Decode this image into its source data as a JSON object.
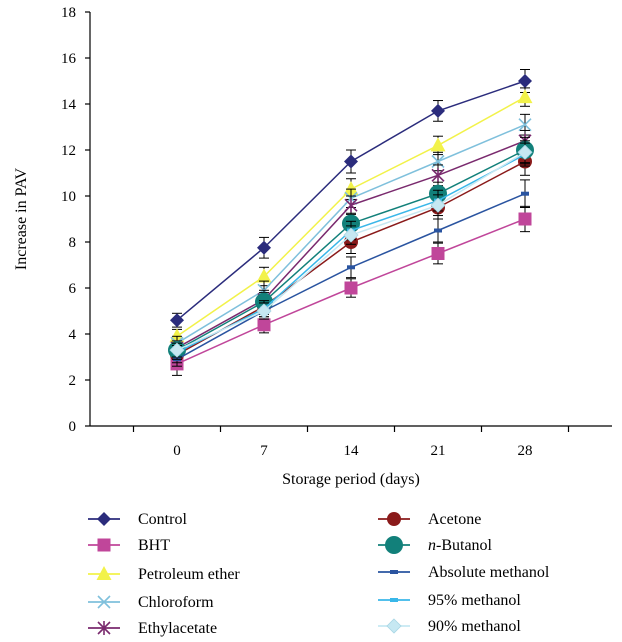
{
  "chart_data": {
    "type": "line",
    "xlabel": "Storage period (days)",
    "ylabel": "Increase in PAV",
    "x": [
      0,
      7,
      14,
      21,
      28
    ],
    "xlim": [
      -7,
      35
    ],
    "ylim": [
      0,
      18
    ],
    "yticks": [
      0,
      2,
      4,
      6,
      8,
      10,
      12,
      14,
      16,
      18
    ],
    "grid": false,
    "legend_position": "bottom",
    "series": [
      {
        "name": "Control",
        "values": [
          4.6,
          7.75,
          11.5,
          13.7,
          15.0
        ],
        "errors": [
          0.3,
          0.45,
          0.5,
          0.45,
          0.5
        ],
        "color": "#2b2c7c",
        "marker": "diamond"
      },
      {
        "name": "BHT",
        "values": [
          2.7,
          4.4,
          6.0,
          7.5,
          9.0
        ],
        "errors": [
          0.5,
          0.35,
          0.4,
          0.45,
          0.55
        ],
        "color": "#c0469a",
        "marker": "square"
      },
      {
        "name": "Petroleum ether",
        "values": [
          3.9,
          6.5,
          10.3,
          12.2,
          14.3
        ],
        "errors": [
          0.3,
          0.4,
          0.45,
          0.4,
          0.4
        ],
        "color": "#f2f24a",
        "marker": "triangle"
      },
      {
        "name": "Chloroform",
        "values": [
          3.6,
          5.9,
          9.9,
          11.5,
          13.1
        ],
        "errors": [
          0.3,
          0.4,
          0.4,
          0.4,
          0.45
        ],
        "color": "#7fc0dc",
        "marker": "x"
      },
      {
        "name": "Ethylacetate",
        "values": [
          3.4,
          5.5,
          9.6,
          10.9,
          12.4
        ],
        "errors": [
          0.3,
          0.4,
          0.4,
          0.45,
          0.45
        ],
        "color": "#7a2a6e",
        "marker": "star"
      },
      {
        "name": "Acetone",
        "values": [
          3.1,
          5.2,
          8.0,
          9.5,
          11.5
        ],
        "errors": [
          0.35,
          0.35,
          0.5,
          0.5,
          0.6
        ],
        "color": "#8a1a1a",
        "marker": "circle"
      },
      {
        "name": "n-Butanol",
        "values": [
          3.3,
          5.4,
          8.8,
          10.1,
          12.0
        ],
        "errors": [
          0.3,
          0.4,
          0.45,
          0.5,
          0.55
        ],
        "color": "#12807a",
        "marker": "bigcircle"
      },
      {
        "name": "Absolute methanol",
        "values": [
          2.9,
          5.0,
          6.9,
          8.5,
          10.1
        ],
        "errors": [
          0.3,
          0.35,
          0.45,
          0.5,
          0.6
        ],
        "color": "#2a54a0",
        "marker": "dash"
      },
      {
        "name": "95% methanol",
        "values": [
          3.2,
          5.1,
          8.5,
          9.8,
          11.8
        ],
        "errors": [
          0.3,
          0.35,
          0.4,
          0.45,
          0.5
        ],
        "color": "#39b7e9",
        "marker": "dash"
      },
      {
        "name": "90% methanol",
        "values": [
          3.3,
          5.0,
          8.3,
          9.6,
          11.9
        ],
        "errors": [
          0.3,
          0.35,
          0.4,
          0.45,
          0.5
        ],
        "color": "#c6e8f2",
        "marker": "diamond-light"
      }
    ]
  }
}
